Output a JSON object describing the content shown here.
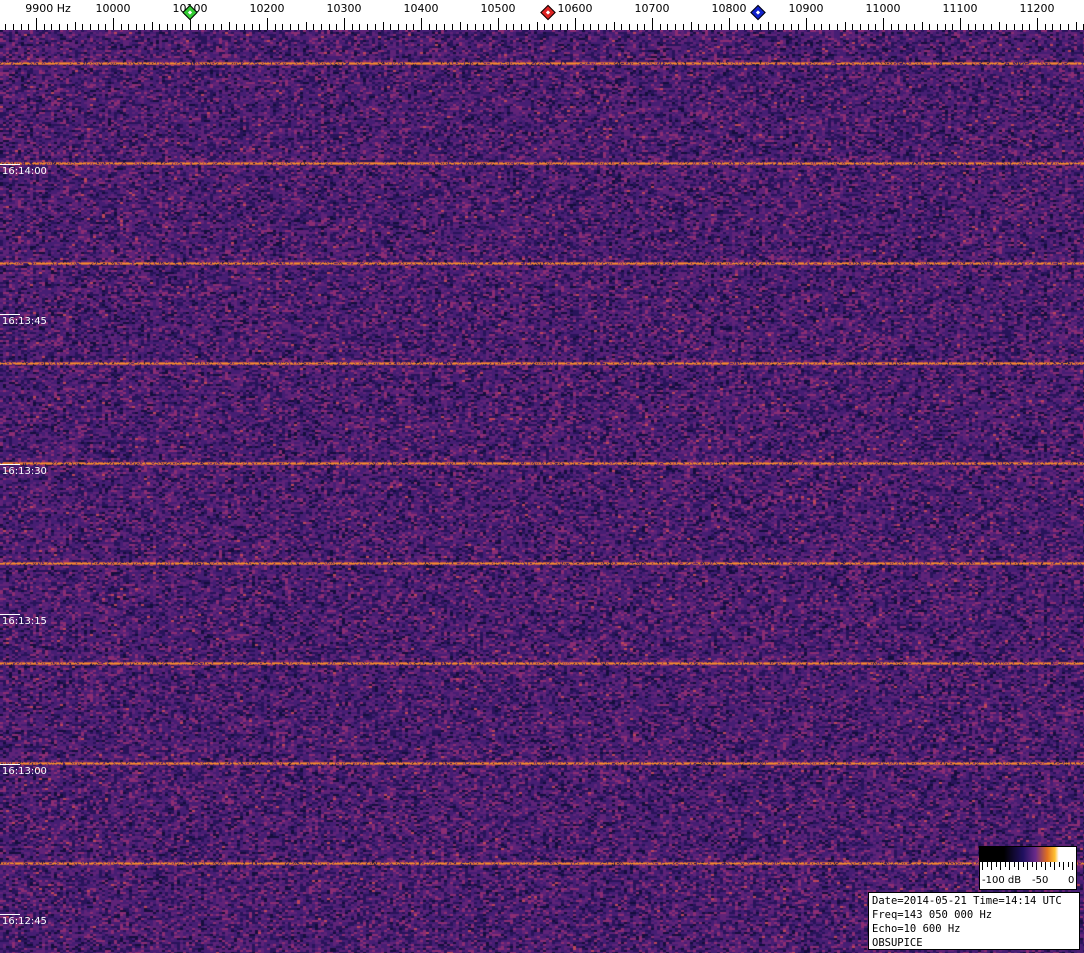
{
  "chart_data": {
    "type": "heatmap",
    "x_axis": {
      "unit": "Hz",
      "range": [
        9850,
        11260
      ],
      "tick_labels": [
        "9900 Hz",
        "10000",
        "10100",
        "10200",
        "10300",
        "10400",
        "10500",
        "10600",
        "10700",
        "10800",
        "10900",
        "11000",
        "11100",
        "11200"
      ],
      "tick_values": [
        9900,
        10000,
        10100,
        10200,
        10300,
        10400,
        10500,
        10600,
        10700,
        10800,
        10900,
        11000,
        11100,
        11200
      ]
    },
    "y_axis": {
      "tick_labels": [
        "16:14:00",
        "16:13:45",
        "16:13:30",
        "16:13:15",
        "16:13:00",
        "16:12:45"
      ],
      "direction": "time decreasing downward"
    },
    "markers": [
      {
        "name": "green-marker",
        "freq_hz": 10100,
        "color": "#33cc33"
      },
      {
        "name": "red-marker",
        "freq_hz": 10565,
        "color": "#dd2222"
      },
      {
        "name": "blue-marker",
        "freq_hz": 10838,
        "color": "#1122cc"
      }
    ],
    "horizontal_lines_interval_s": 10,
    "colorbar": {
      "labels": [
        "-100 dB",
        "-50",
        "0"
      ],
      "range_db": [
        -100,
        0
      ]
    },
    "palette": [
      "#000000",
      "#201060",
      "#6a2a8a",
      "#e07020",
      "#ffc030",
      "#ffffff"
    ]
  },
  "info": {
    "line1": "Date=2014-05-21 Time=14:14 UTC",
    "line2": "Freq=143 050 000 Hz",
    "line3": "Echo=10 600 Hz",
    "line4": "OBSUPICE"
  }
}
